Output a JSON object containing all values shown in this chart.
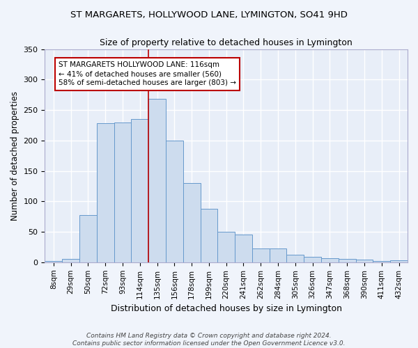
{
  "title1": "ST MARGARETS, HOLLYWOOD LANE, LYMINGTON, SO41 9HD",
  "title2": "Size of property relative to detached houses in Lymington",
  "xlabel": "Distribution of detached houses by size in Lymington",
  "ylabel": "Number of detached properties",
  "bar_values": [
    2,
    5,
    78,
    228,
    230,
    235,
    268,
    200,
    130,
    88,
    50,
    45,
    23,
    23,
    12,
    9,
    7,
    5,
    4,
    2,
    3
  ],
  "bar_labels": [
    "8sqm",
    "29sqm",
    "50sqm",
    "72sqm",
    "93sqm",
    "114sqm",
    "135sqm",
    "156sqm",
    "178sqm",
    "199sqm",
    "220sqm",
    "241sqm",
    "262sqm",
    "284sqm",
    "305sqm",
    "326sqm",
    "347sqm",
    "368sqm",
    "390sqm",
    "411sqm",
    "432sqm"
  ],
  "bar_color": "#cddcee",
  "bar_edge_color": "#6699cc",
  "background_color": "#e8eef8",
  "grid_color": "#ffffff",
  "vline_x_idx": 6,
  "vline_color": "#bb0000",
  "annotation_text": "ST MARGARETS HOLLYWOOD LANE: 116sqm\n← 41% of detached houses are smaller (560)\n58% of semi-detached houses are larger (803) →",
  "annotation_box_facecolor": "#ffffff",
  "annotation_box_edgecolor": "#bb0000",
  "footer_text": "Contains HM Land Registry data © Crown copyright and database right 2024.\nContains public sector information licensed under the Open Government Licence v3.0.",
  "ylim": [
    0,
    350
  ],
  "yticks": [
    0,
    50,
    100,
    150,
    200,
    250,
    300,
    350
  ],
  "fig_bg": "#f0f4fb"
}
